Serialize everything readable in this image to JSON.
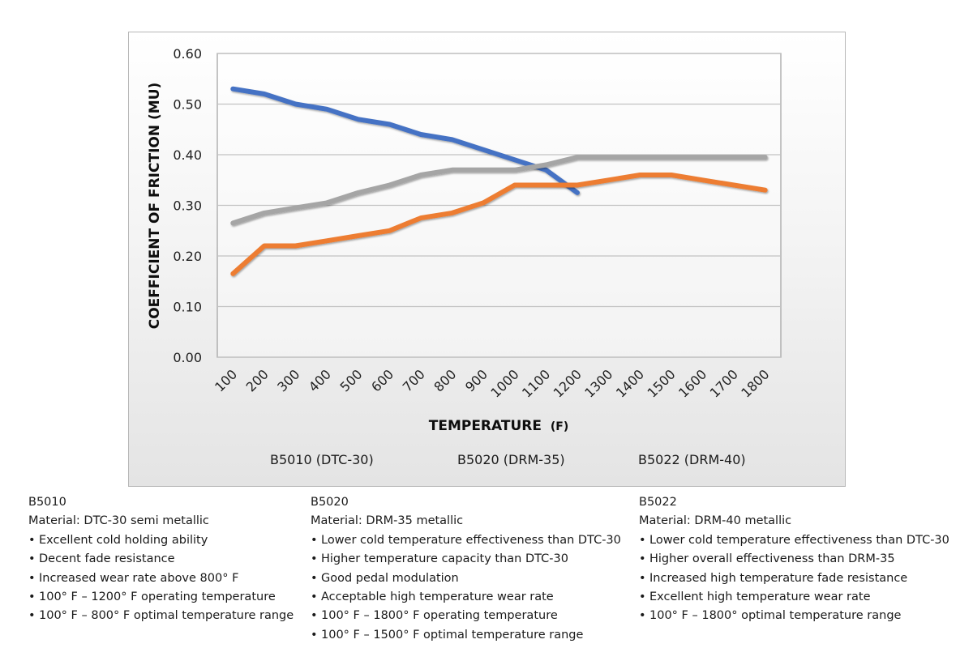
{
  "chart_data": {
    "type": "line",
    "title": "",
    "xlabel": "TEMPERATURE (F)",
    "xlabel_main": "TEMPERATURE",
    "xlabel_unit": "(F)",
    "ylabel": "COEFFICIENT OF FRICTION (MU)",
    "ylim": [
      0,
      0.6
    ],
    "yticks": [
      "0.00",
      "0.10",
      "0.20",
      "0.30",
      "0.40",
      "0.50",
      "0.60"
    ],
    "ytick_values": [
      0,
      0.1,
      0.2,
      0.3,
      0.4,
      0.5,
      0.6
    ],
    "grid": true,
    "legend_position": "bottom",
    "categories": [
      "100",
      "200",
      "300",
      "400",
      "500",
      "600",
      "700",
      "800",
      "900",
      "1000",
      "1100",
      "1200",
      "1300",
      "1400",
      "1500",
      "1600",
      "1700",
      "1800"
    ],
    "series": [
      {
        "name": "B5010 (DTC-30)",
        "color": "#4472c4",
        "values": [
          0.53,
          0.52,
          0.5,
          0.49,
          0.47,
          0.46,
          0.44,
          0.43,
          0.41,
          0.39,
          0.37,
          0.325,
          null,
          null,
          null,
          null,
          null,
          null
        ]
      },
      {
        "name": "B5020 (DRM-35)",
        "color": "#ed7d31",
        "values": [
          0.165,
          0.22,
          0.22,
          0.23,
          0.24,
          0.25,
          0.275,
          0.285,
          0.305,
          0.34,
          0.34,
          0.34,
          0.35,
          0.36,
          0.36,
          0.35,
          0.34,
          0.33
        ]
      },
      {
        "name": "B5022 (DRM-40)",
        "color": "#a5a5a5",
        "values": [
          0.265,
          0.285,
          0.295,
          0.305,
          0.325,
          0.34,
          0.36,
          0.37,
          0.37,
          0.37,
          0.38,
          0.395,
          0.395,
          0.395,
          0.395,
          0.395,
          0.395,
          0.395
        ]
      }
    ]
  },
  "notes": [
    {
      "code": "B5010",
      "material": "Material: DTC-30 semi metallic",
      "bullets": [
        "Excellent cold holding ability",
        "Decent fade resistance",
        "Increased wear rate above 800° F",
        "100° F – 1200° F operating temperature",
        "100° F – 800° F optimal temperature range"
      ]
    },
    {
      "code": "B5020",
      "material": "Material: DRM-35 metallic",
      "bullets": [
        "Lower cold temperature effectiveness than DTC-30",
        "Higher temperature capacity than DTC-30",
        "Good pedal modulation",
        "Acceptable high temperature wear rate",
        "100° F – 1800° F operating temperature",
        "100° F – 1500° F optimal temperature range"
      ]
    },
    {
      "code": "B5022",
      "material": "Material: DRM-40 metallic",
      "bullets": [
        "Lower cold temperature effectiveness than DTC-30",
        "Higher overall effectiveness than DRM-35",
        "Increased high temperature fade resistance",
        "Excellent high temperature wear rate",
        "100° F – 1800° optimal temperature range"
      ]
    }
  ],
  "bullet_glyph": "•"
}
